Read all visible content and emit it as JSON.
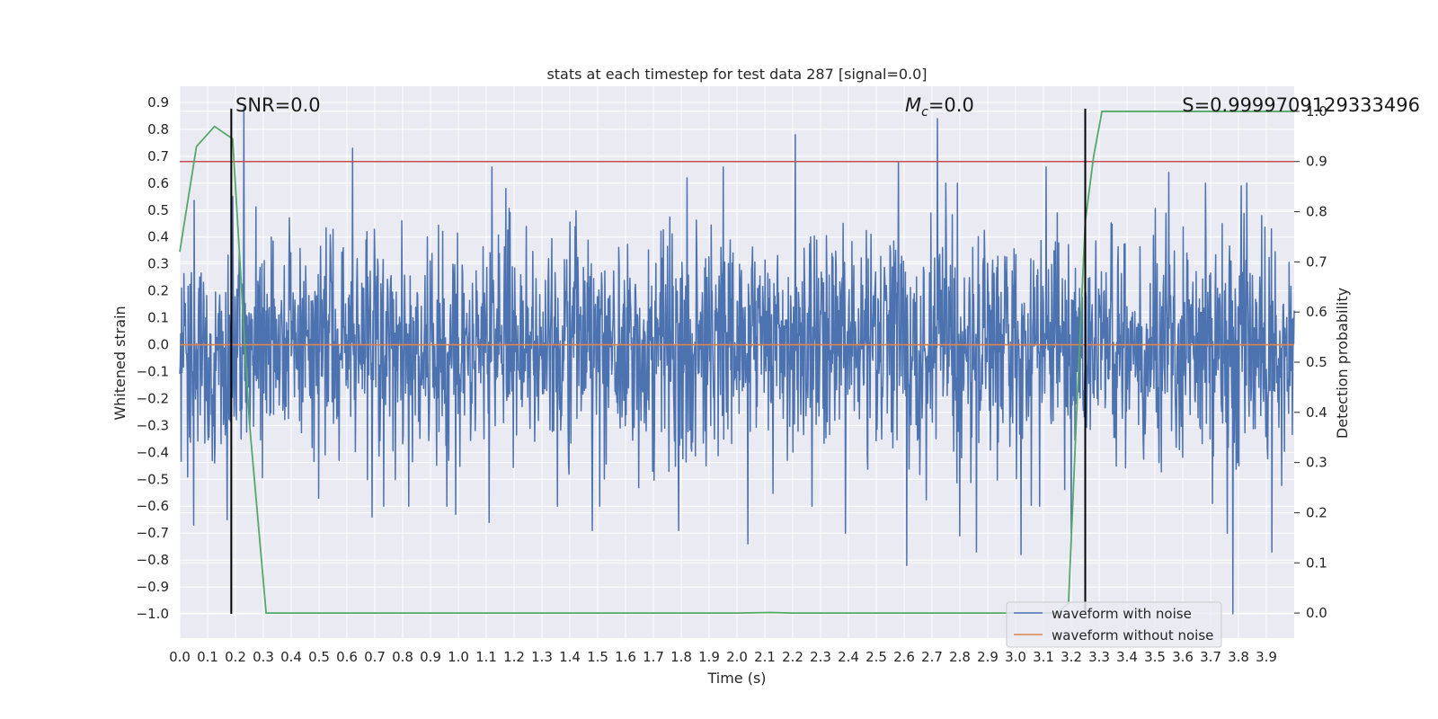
{
  "chart_data": {
    "type": "line",
    "title": "stats at each timestep for test data 287 [signal=0.0]",
    "xlabel": "Time (s)",
    "ylabel": "Whitened strain",
    "y2label": "Detection probability",
    "xlim": [
      0.0,
      4.0
    ],
    "ylim": [
      -1.09,
      0.96
    ],
    "y2lim": [
      -0.05,
      1.05
    ],
    "grid": true,
    "x_ticks": [
      "0.0",
      "0.1",
      "0.2",
      "0.3",
      "0.4",
      "0.5",
      "0.6",
      "0.7",
      "0.8",
      "0.9",
      "1.0",
      "1.1",
      "1.2",
      "1.3",
      "1.4",
      "1.5",
      "1.6",
      "1.7",
      "1.8",
      "1.9",
      "2.0",
      "2.1",
      "2.2",
      "2.3",
      "2.4",
      "2.5",
      "2.6",
      "2.7",
      "2.8",
      "2.9",
      "3.0",
      "3.1",
      "3.2",
      "3.3",
      "3.4",
      "3.5",
      "3.6",
      "3.7",
      "3.8",
      "3.9"
    ],
    "y_ticks": [
      "0.9",
      "0.8",
      "0.7",
      "0.6",
      "0.5",
      "0.4",
      "0.3",
      "0.2",
      "0.1",
      "0.0",
      "−0.1",
      "−0.2",
      "−0.3",
      "−0.4",
      "−0.5",
      "−0.6",
      "−0.7",
      "−0.8",
      "−0.9",
      "−1.0"
    ],
    "y2_ticks": [
      "1.0",
      "0.9",
      "0.8",
      "0.7",
      "0.6",
      "0.5",
      "0.4",
      "0.3",
      "0.2",
      "0.1",
      "0.0"
    ],
    "annotations": {
      "snr": "SNR=0.0",
      "mc_symbol": "M",
      "mc_sub": "c",
      "mc_value": "=0.0",
      "s": "S=0.9999709129333496"
    },
    "legend": {
      "placement": "lower-right",
      "entries": [
        {
          "label": "waveform with noise",
          "color": "#4c72b0"
        },
        {
          "label": "waveform without noise",
          "color": "#dd8452"
        }
      ]
    },
    "series": [
      {
        "name": "waveform with noise",
        "color": "#4c72b0",
        "axis": "left",
        "kind": "noise",
        "seed": 287,
        "points": 2400,
        "sigma": 0.2,
        "peaks": [
          {
            "x": 0.23,
            "y": 0.88
          },
          {
            "x": 0.22,
            "y": -0.35
          },
          {
            "x": 0.05,
            "y": 0.72
          },
          {
            "x": 0.05,
            "y": -0.67
          },
          {
            "x": 0.17,
            "y": -0.65
          },
          {
            "x": 0.62,
            "y": 0.73
          },
          {
            "x": 0.69,
            "y": -0.64
          },
          {
            "x": 0.99,
            "y": -0.63
          },
          {
            "x": 1.11,
            "y": -0.66
          },
          {
            "x": 1.12,
            "y": 0.66
          },
          {
            "x": 1.17,
            "y": 0.58
          },
          {
            "x": 1.48,
            "y": -0.69
          },
          {
            "x": 1.82,
            "y": 0.62
          },
          {
            "x": 1.79,
            "y": -0.69
          },
          {
            "x": 1.95,
            "y": 0.66
          },
          {
            "x": 2.04,
            "y": -0.74
          },
          {
            "x": 2.21,
            "y": 0.78
          },
          {
            "x": 2.27,
            "y": -0.6
          },
          {
            "x": 2.39,
            "y": -0.7
          },
          {
            "x": 2.58,
            "y": 0.68
          },
          {
            "x": 2.61,
            "y": -0.82
          },
          {
            "x": 2.72,
            "y": 0.84
          },
          {
            "x": 2.8,
            "y": -0.71
          },
          {
            "x": 2.86,
            "y": -0.77
          },
          {
            "x": 3.02,
            "y": -0.78
          },
          {
            "x": 3.11,
            "y": 0.66
          },
          {
            "x": 3.2,
            "y": -0.7
          },
          {
            "x": 3.55,
            "y": 0.64
          },
          {
            "x": 3.76,
            "y": -0.7
          },
          {
            "x": 3.78,
            "y": -1.0
          },
          {
            "x": 3.81,
            "y": 0.59
          },
          {
            "x": 3.92,
            "y": -0.77
          }
        ]
      },
      {
        "name": "waveform without noise",
        "color": "#dd8452",
        "axis": "left",
        "x": [
          0.0,
          4.0
        ],
        "y": [
          0.0,
          0.0
        ]
      },
      {
        "name": "detection probability",
        "color": "#55a868",
        "axis": "right",
        "x": [
          0.0,
          0.06,
          0.125,
          0.19,
          0.25,
          0.31,
          0.375,
          0.5,
          1.0,
          1.5,
          2.0,
          2.12,
          2.2,
          2.5,
          3.0,
          3.15,
          3.19,
          3.22,
          3.25,
          3.28,
          3.31,
          3.5,
          3.75,
          3.9,
          4.0
        ],
        "y": [
          0.72,
          0.93,
          0.97,
          0.945,
          0.38,
          0.0,
          0.0,
          0.0,
          0.0,
          0.0,
          0.0,
          0.001,
          0.0,
          0.0,
          0.0,
          0.0,
          0.02,
          0.41,
          0.78,
          0.91,
          0.9999,
          0.9999,
          0.9999,
          0.9999,
          0.9999
        ]
      }
    ],
    "threshold": {
      "axis": "right",
      "value": 0.9,
      "color": "#c44e52"
    },
    "markers": {
      "x": [
        0.185,
        3.25
      ],
      "y_from": -1.0,
      "y_to": 0.877,
      "color": "#000000"
    }
  }
}
